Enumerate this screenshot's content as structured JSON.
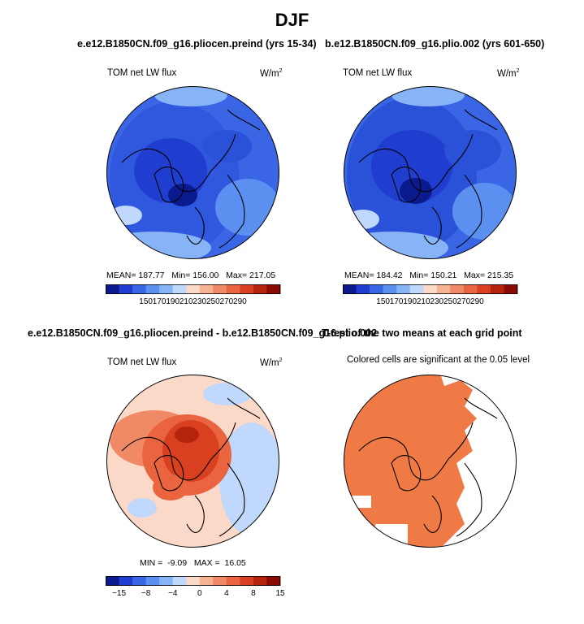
{
  "figure_title": "DJF",
  "colors": {
    "abs_scale": [
      "#0b1a8c",
      "#1f3ed0",
      "#3a66e6",
      "#5b8ff0",
      "#86b4f6",
      "#bfd8fb",
      "#fbd9c9",
      "#f6b394",
      "#f08a66",
      "#e9643f",
      "#d8401f",
      "#b5230d",
      "#8a0a06"
    ],
    "diff_scale": [
      "#0b1a8c",
      "#1f3ed0",
      "#3a66e6",
      "#5b8ff0",
      "#86b4f6",
      "#bfd8fb",
      "#fbd9c9",
      "#f6b394",
      "#f08a66",
      "#e9643f",
      "#d8401f",
      "#b5230d",
      "#8a0a06"
    ],
    "significance": "#f07a45"
  },
  "chart_data": [
    {
      "type": "heatmap",
      "projection": "north-polar-stereographic",
      "title": "e.e12.B1850CN.f09_g16.pliocen.preind (yrs 15-34)",
      "variable": "TOM net LW flux",
      "units": "W/m",
      "units_exp": "2",
      "stats": {
        "mean_label": "MEAN=",
        "mean": "187.77",
        "min_label": "Min=",
        "min": "156.00",
        "max_label": "Max=",
        "max": "217.05"
      },
      "colorbar_ticks": [
        "150",
        "170",
        "190",
        "210",
        "230",
        "250",
        "270",
        "290"
      ]
    },
    {
      "type": "heatmap",
      "projection": "north-polar-stereographic",
      "title": "b.e12.B1850CN.f09_g16.plio.002 (yrs 601-650)",
      "variable": "TOM net LW flux",
      "units": "W/m",
      "units_exp": "2",
      "stats": {
        "mean_label": "MEAN=",
        "mean": "184.42",
        "min_label": "Min=",
        "min": "150.21",
        "max_label": "Max=",
        "max": "215.35"
      },
      "colorbar_ticks": [
        "150",
        "170",
        "190",
        "210",
        "230",
        "250",
        "270",
        "290"
      ]
    },
    {
      "type": "heatmap",
      "projection": "north-polar-stereographic",
      "title": "e.e12.B1850CN.f09_g16.pliocen.preind - b.e12.B1850CN.f09_g16.plio.002",
      "variable": "TOM net LW flux",
      "units": "W/m",
      "units_exp": "2",
      "stats": {
        "min_label": "MIN =",
        "min": "-9.09",
        "max_label": "MAX =",
        "max": "16.05"
      },
      "colorbar_ticks": [
        "−15",
        "−8",
        "−4",
        "0",
        "4",
        "8",
        "15"
      ]
    },
    {
      "type": "heatmap",
      "projection": "north-polar-stereographic",
      "title": "T-test of the two means at each grid point",
      "subtitle": "Colored cells are significant at the 0.05 level"
    }
  ]
}
